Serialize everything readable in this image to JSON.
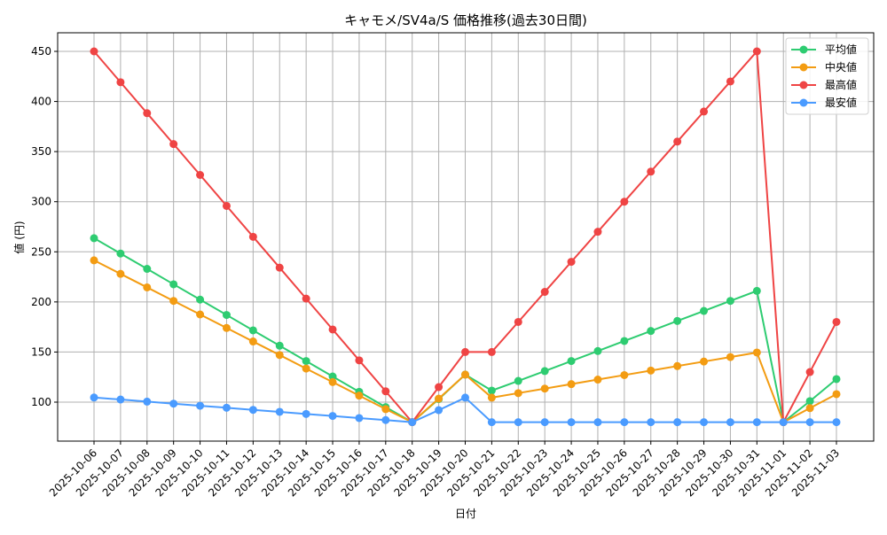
{
  "chart_data": {
    "type": "line",
    "title": "キャモメ/SV4a/S 価格推移(過去30日間)",
    "xlabel": "日付",
    "ylabel": "値 (円)",
    "x": [
      "2025-10-06",
      "2025-10-07",
      "2025-10-08",
      "2025-10-09",
      "2025-10-10",
      "2025-10-11",
      "2025-10-12",
      "2025-10-13",
      "2025-10-14",
      "2025-10-15",
      "2025-10-16",
      "2025-10-17",
      "2025-10-18",
      "2025-10-19",
      "2025-10-20",
      "2025-10-21",
      "2025-10-22",
      "2025-10-23",
      "2025-10-24",
      "2025-10-25",
      "2025-10-26",
      "2025-10-27",
      "2025-10-28",
      "2025-10-29",
      "2025-10-30",
      "2025-10-31",
      "2025-11-01",
      "2025-11-02",
      "2025-11-03"
    ],
    "yticks": [
      100,
      150,
      200,
      250,
      300,
      350,
      400,
      450
    ],
    "ylim": [
      61.5,
      468.5
    ],
    "grid": true,
    "legend_position": "upper right",
    "series": [
      {
        "name": "平均値",
        "color": "#2ecc71",
        "values": [
          263.6,
          248.3,
          233.0,
          217.6,
          202.3,
          187.0,
          171.6,
          156.3,
          141.0,
          125.6,
          110.3,
          95.0,
          80,
          103,
          127.5,
          111.5,
          121.2,
          131.0,
          141.0,
          151.0,
          161.0,
          171.0,
          181.0,
          191.0,
          201.0,
          211.0,
          80,
          101,
          123
        ]
      },
      {
        "name": "中央値",
        "color": "#f39c12",
        "values": [
          241.5,
          228.0,
          214.5,
          201.0,
          187.5,
          174.0,
          160.5,
          147.0,
          133.5,
          120.0,
          106.5,
          93.0,
          80,
          103.5,
          127.5,
          104.5,
          109.0,
          113.5,
          118.0,
          122.5,
          127.0,
          131.5,
          136.0,
          140.5,
          145.0,
          149.5,
          80,
          94,
          108
        ]
      },
      {
        "name": "最高値",
        "color": "#ef4444",
        "values": [
          450,
          419.2,
          388.3,
          357.5,
          326.7,
          295.8,
          265.0,
          234.2,
          203.3,
          172.5,
          141.7,
          110.8,
          80,
          115,
          150,
          150,
          180,
          210,
          240,
          270,
          300,
          330,
          360,
          390,
          420,
          450,
          80,
          130,
          180
        ]
      },
      {
        "name": "最安値",
        "color": "#4a9bff",
        "values": [
          104.6,
          102.6,
          100.5,
          98.5,
          96.4,
          94.4,
          92.3,
          90.3,
          88.2,
          86.2,
          84.1,
          82.1,
          80,
          92,
          104.5,
          80,
          80,
          80,
          80,
          80,
          80,
          80,
          80,
          80,
          80,
          80,
          80,
          80,
          80
        ]
      }
    ]
  }
}
